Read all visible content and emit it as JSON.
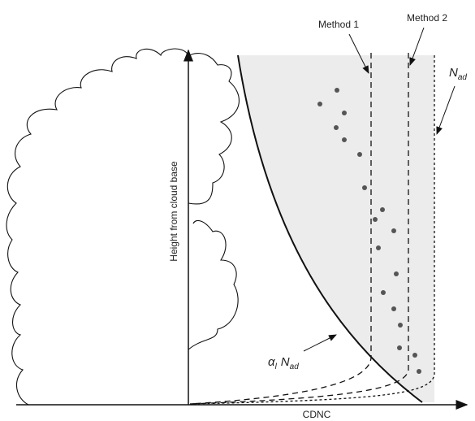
{
  "labels": {
    "method1": "Method 1",
    "method2": "Method 2",
    "nad": {
      "symbol": "N",
      "subscript": "ad"
    },
    "alpha": {
      "symbol": "α",
      "subscript": "l",
      "symbol2": "N",
      "subscript2": "ad"
    },
    "y_axis": "Height from cloud base",
    "x_axis": "CDNC"
  }
}
